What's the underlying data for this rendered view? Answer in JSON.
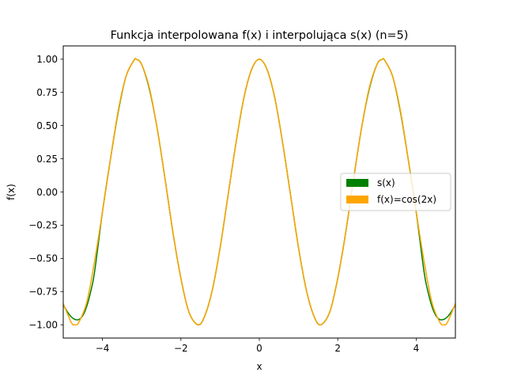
{
  "chart_data": {
    "type": "line",
    "title": "Funkcja interpolowana f(x) i interpolująca s(x) (n=5)",
    "xlabel": "x",
    "ylabel": "f(x)",
    "xlim": [
      -5,
      5
    ],
    "ylim": [
      -1.1,
      1.1
    ],
    "xticks": [
      -4,
      -2,
      0,
      2,
      4
    ],
    "xtick_labels": [
      "−4",
      "−2",
      "0",
      "2",
      "4"
    ],
    "yticks": [
      -1.0,
      -0.75,
      -0.5,
      -0.25,
      0.0,
      0.25,
      0.5,
      0.75,
      1.0
    ],
    "ytick_labels": [
      "−1.00",
      "−0.75",
      "−0.50",
      "−0.25",
      "0.00",
      "0.25",
      "0.50",
      "0.75",
      "1.00"
    ],
    "grid": false,
    "legend_position": "center-right",
    "series": [
      {
        "name": "s(x)",
        "color": "#008000",
        "x": [
          -5.0,
          -4.9,
          -4.8,
          -4.7,
          -4.6,
          -4.5,
          -4.4,
          -4.3,
          -4.2,
          -4.0,
          -3.8,
          -3.6,
          -3.4,
          -3.2,
          -3.14,
          -3.0,
          -2.8,
          -2.6,
          -2.4,
          -2.2,
          -2.0,
          -1.8,
          -1.57,
          -1.4,
          -1.2,
          -1.0,
          -0.8,
          -0.6,
          -0.4,
          -0.2,
          0.0,
          0.2,
          0.4,
          0.6,
          0.8,
          1.0,
          1.2,
          1.4,
          1.57,
          1.8,
          2.0,
          2.2,
          2.4,
          2.6,
          2.8,
          3.0,
          3.14,
          3.2,
          3.4,
          3.6,
          3.8,
          4.0,
          4.2,
          4.3,
          4.4,
          4.5,
          4.6,
          4.7,
          4.8,
          4.9,
          5.0
        ],
        "y": [
          -0.85,
          -0.9,
          -0.94,
          -0.96,
          -0.96,
          -0.93,
          -0.86,
          -0.75,
          -0.6,
          -0.15,
          0.24,
          0.6,
          0.87,
          0.99,
          1.0,
          0.96,
          0.77,
          0.47,
          0.09,
          -0.31,
          -0.65,
          -0.9,
          -1.0,
          -0.94,
          -0.74,
          -0.42,
          -0.03,
          0.36,
          0.7,
          0.92,
          1.0,
          0.92,
          0.7,
          0.36,
          -0.03,
          -0.42,
          -0.74,
          -0.94,
          -1.0,
          -0.9,
          -0.65,
          -0.31,
          0.09,
          0.47,
          0.77,
          0.96,
          1.0,
          0.99,
          0.87,
          0.6,
          0.24,
          -0.15,
          -0.6,
          -0.75,
          -0.86,
          -0.93,
          -0.96,
          -0.96,
          -0.94,
          -0.9,
          -0.85
        ]
      },
      {
        "name": "f(x)=cos(2x)",
        "color": "#ffa500",
        "x": [
          -5.0,
          -4.8,
          -4.71,
          -4.6,
          -4.4,
          -4.2,
          -4.0,
          -3.8,
          -3.6,
          -3.4,
          -3.2,
          -3.14,
          -3.0,
          -2.8,
          -2.6,
          -2.4,
          -2.2,
          -2.0,
          -1.8,
          -1.57,
          -1.4,
          -1.2,
          -1.0,
          -0.8,
          -0.6,
          -0.4,
          -0.2,
          0.0,
          0.2,
          0.4,
          0.6,
          0.8,
          1.0,
          1.2,
          1.4,
          1.57,
          1.8,
          2.0,
          2.2,
          2.4,
          2.6,
          2.8,
          3.0,
          3.14,
          3.2,
          3.4,
          3.6,
          3.8,
          4.0,
          4.2,
          4.4,
          4.6,
          4.71,
          4.8,
          5.0
        ],
        "y": [
          -0.84,
          -0.98,
          -1.0,
          -0.98,
          -0.83,
          -0.52,
          -0.15,
          0.24,
          0.61,
          0.87,
          0.99,
          1.0,
          0.96,
          0.78,
          0.47,
          0.09,
          -0.31,
          -0.65,
          -0.9,
          -1.0,
          -0.94,
          -0.74,
          -0.42,
          -0.03,
          0.36,
          0.7,
          0.92,
          1.0,
          0.92,
          0.7,
          0.36,
          -0.03,
          -0.42,
          -0.74,
          -0.94,
          -1.0,
          -0.9,
          -0.65,
          -0.31,
          0.09,
          0.47,
          0.78,
          0.96,
          1.0,
          0.99,
          0.87,
          0.61,
          0.24,
          -0.15,
          -0.52,
          -0.83,
          -0.98,
          -1.0,
          -0.98,
          -0.84
        ]
      }
    ]
  }
}
